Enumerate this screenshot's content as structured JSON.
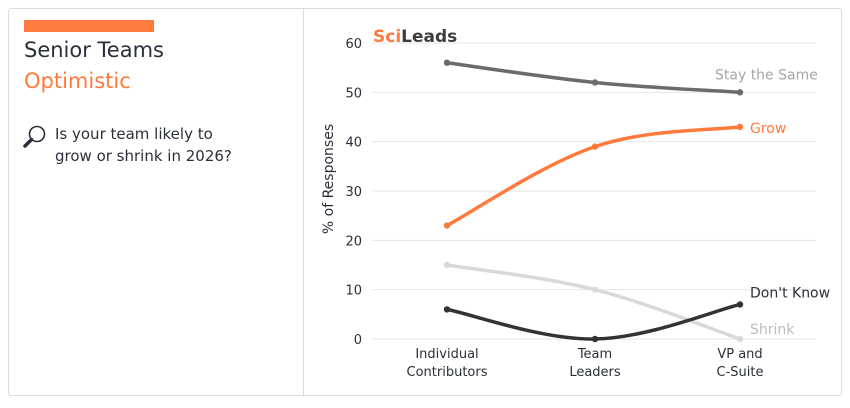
{
  "sidebar": {
    "title_line1": "Senior Teams",
    "title_line2": "Optimistic",
    "question_line1": "Is your team likely to",
    "question_line2": "grow or shrink in 2026?",
    "icon": "magnifier-icon",
    "accent_color": "#ff7a3d"
  },
  "logo": {
    "part1": "Sci",
    "part2": "Leads"
  },
  "chart_data": {
    "type": "line",
    "title": "",
    "xlabel": "",
    "ylabel": "% of Responses",
    "ylim": [
      0,
      60
    ],
    "yticks": [
      "0",
      "10",
      "20",
      "30",
      "40",
      "50",
      "60"
    ],
    "grid": true,
    "categories": [
      {
        "line1": "Individual",
        "line2": "Contributors"
      },
      {
        "line1": "Team",
        "line2": "Leaders"
      },
      {
        "line1": "VP and",
        "line2": "C-Suite"
      }
    ],
    "series": [
      {
        "name": "Stay the Same",
        "values": [
          56,
          52,
          50
        ],
        "color": "#6b6b6b",
        "label_color": "#a6a6a6"
      },
      {
        "name": "Grow",
        "values": [
          23,
          39,
          43
        ],
        "color": "#ff7a3d",
        "label_color": "#ff7a3d"
      },
      {
        "name": "Shrink",
        "values": [
          15,
          10,
          0
        ],
        "color": "#d9d9d9",
        "label_color": "#bdbdbd"
      },
      {
        "name": "Don't Know",
        "values": [
          6,
          0,
          7
        ],
        "color": "#333333",
        "label_color": "#2b2f3a"
      }
    ]
  }
}
